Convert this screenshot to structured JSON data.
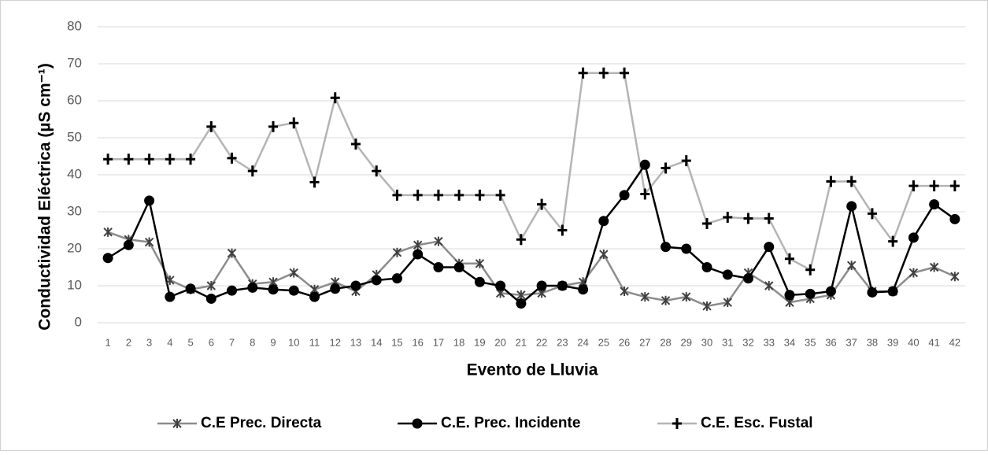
{
  "chart_data": {
    "type": "line",
    "y_label": "Conductividad Eléctrica (µS cm⁻¹)",
    "x_label": "Evento de Lluvia",
    "categories": [
      1,
      2,
      3,
      4,
      5,
      6,
      7,
      8,
      9,
      10,
      11,
      12,
      13,
      14,
      15,
      16,
      17,
      18,
      19,
      20,
      21,
      22,
      23,
      24,
      25,
      26,
      27,
      28,
      29,
      30,
      31,
      32,
      33,
      34,
      35,
      36,
      37,
      38,
      39,
      40,
      41,
      42
    ],
    "series": [
      {
        "name": "C.E Prec. Directa",
        "color": "#8c8c8c",
        "marker": "asterisk",
        "marker_color": "#404040",
        "values": [
          24.5,
          22.5,
          21.8,
          11.5,
          9,
          10,
          18.8,
          10.5,
          11,
          13.5,
          9,
          11,
          8.5,
          13,
          19,
          21,
          22,
          16,
          16,
          8,
          7.5,
          8,
          10,
          11,
          18.5,
          8.5,
          7,
          6,
          7,
          4.5,
          5.5,
          13.5,
          10,
          5.5,
          6.5,
          7.5,
          15.5,
          8.5,
          8.5,
          13.5,
          15,
          12.5
        ]
      },
      {
        "name": "C.E. Prec. Incidente",
        "color": "#000000",
        "marker": "circle",
        "marker_color": "#000000",
        "values": [
          17.5,
          21,
          33,
          7,
          9.2,
          6.5,
          8.7,
          9.5,
          9,
          8.7,
          7,
          9.2,
          10,
          11.5,
          12,
          18.5,
          15,
          15,
          11,
          10,
          5.2,
          10,
          10,
          9,
          27.5,
          34.5,
          42.7,
          20.5,
          20,
          15,
          13,
          12,
          20.5,
          7.5,
          7.8,
          8.5,
          31.5,
          8.2,
          8.5,
          23,
          32,
          28
        ]
      },
      {
        "name": "C.E. Esc. Fustal",
        "color": "#b4b4b4",
        "marker": "plus",
        "marker_color": "#000000",
        "values": [
          44.2,
          44.2,
          44.2,
          44.2,
          44.2,
          53,
          44.5,
          41,
          53,
          54,
          38,
          60.8,
          48.3,
          41,
          34.5,
          34.5,
          34.5,
          34.5,
          34.5,
          34.5,
          22.5,
          32,
          25,
          67.5,
          67.5,
          67.5,
          34.8,
          41.8,
          43.8,
          26.8,
          28.5,
          28.2,
          28.2,
          17.3,
          14.3,
          38.2,
          38.2,
          29.5,
          22,
          37,
          37,
          37
        ]
      }
    ],
    "ylim": [
      0,
      80
    ],
    "yticks": [
      0,
      10,
      20,
      30,
      40,
      50,
      60,
      70,
      80
    ],
    "grid": true,
    "legend": "bottom"
  }
}
